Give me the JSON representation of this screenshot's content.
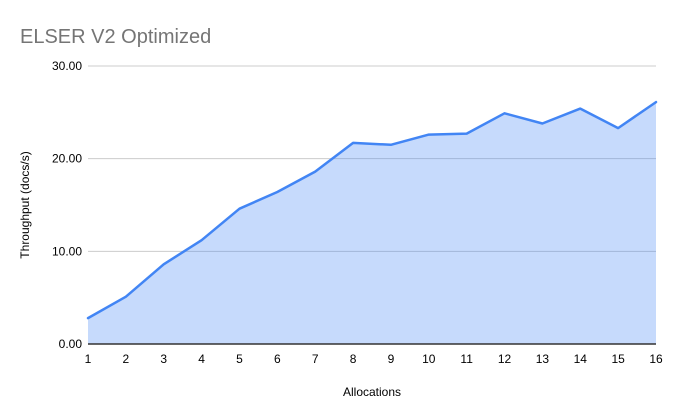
{
  "chart_data": {
    "type": "area",
    "title": "ELSER V2 Optimized",
    "xlabel": "Allocations",
    "ylabel": "Throughput (docs/s)",
    "categories": [
      "1",
      "2",
      "3",
      "4",
      "5",
      "6",
      "7",
      "8",
      "9",
      "10",
      "11",
      "12",
      "13",
      "14",
      "15",
      "16"
    ],
    "values": [
      2.8,
      5.1,
      8.6,
      11.2,
      14.6,
      16.4,
      18.6,
      21.7,
      21.5,
      22.6,
      22.7,
      24.9,
      23.8,
      25.4,
      23.3,
      26.1
    ],
    "y_ticks": [
      "0.00",
      "10.00",
      "20.00",
      "30.00"
    ],
    "ylim": [
      0,
      30
    ],
    "grid": true,
    "legend": "none",
    "colors": {
      "line": "#4285f4",
      "fill": "#4285f4",
      "fill_opacity": 0.3,
      "gridline": "#cccccc",
      "axis_line": "#333333",
      "title": "#757575",
      "tick_label": "#000000"
    }
  }
}
